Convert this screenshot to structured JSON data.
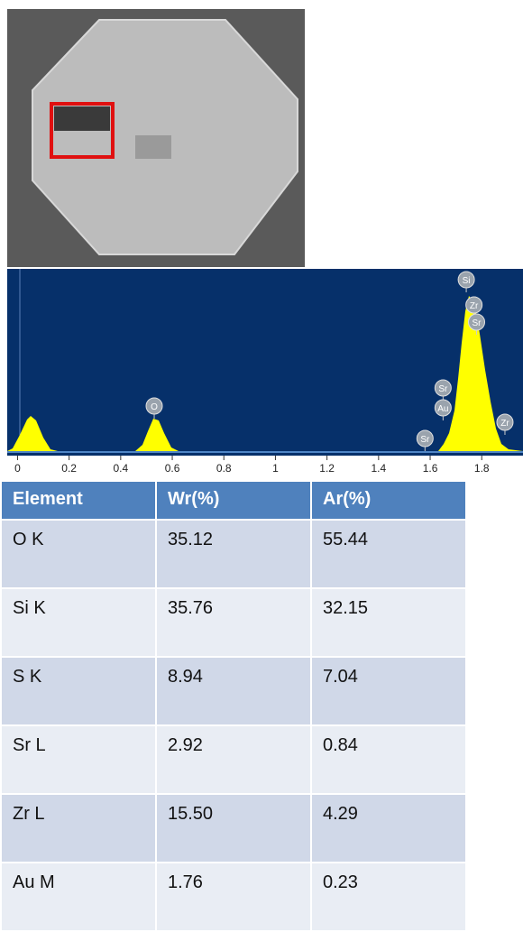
{
  "chart_data": {
    "type": "area",
    "xlim": [
      -0.04,
      1.96
    ],
    "xticks": [
      0,
      0.2,
      0.4,
      0.6,
      0.8,
      1,
      1.2,
      1.4,
      1.6,
      1.8
    ],
    "peak_labels": [
      {
        "label": "O",
        "x": 0.53
      },
      {
        "label": "Si",
        "x": 1.74
      },
      {
        "label": "Zr",
        "x": 1.77
      },
      {
        "label": "Sr",
        "x": 1.78
      },
      {
        "label": "Sr",
        "x": 1.65
      },
      {
        "label": "Au",
        "x": 1.65
      },
      {
        "label": "Sr",
        "x": 1.58
      },
      {
        "label": "Zr",
        "x": 1.89
      }
    ]
  },
  "table": {
    "header": [
      "Element",
      "Wr(%)",
      "Ar(%)"
    ],
    "rows": [
      [
        "O K",
        "35.12",
        "55.44"
      ],
      [
        "Si K",
        "35.76",
        "32.15"
      ],
      [
        "S K",
        "8.94",
        "7.04"
      ],
      [
        "Sr L",
        "2.92",
        "0.84"
      ],
      [
        "Zr L",
        "15.50",
        "4.29"
      ],
      [
        "Au M",
        "1.76",
        "0.23"
      ]
    ]
  }
}
